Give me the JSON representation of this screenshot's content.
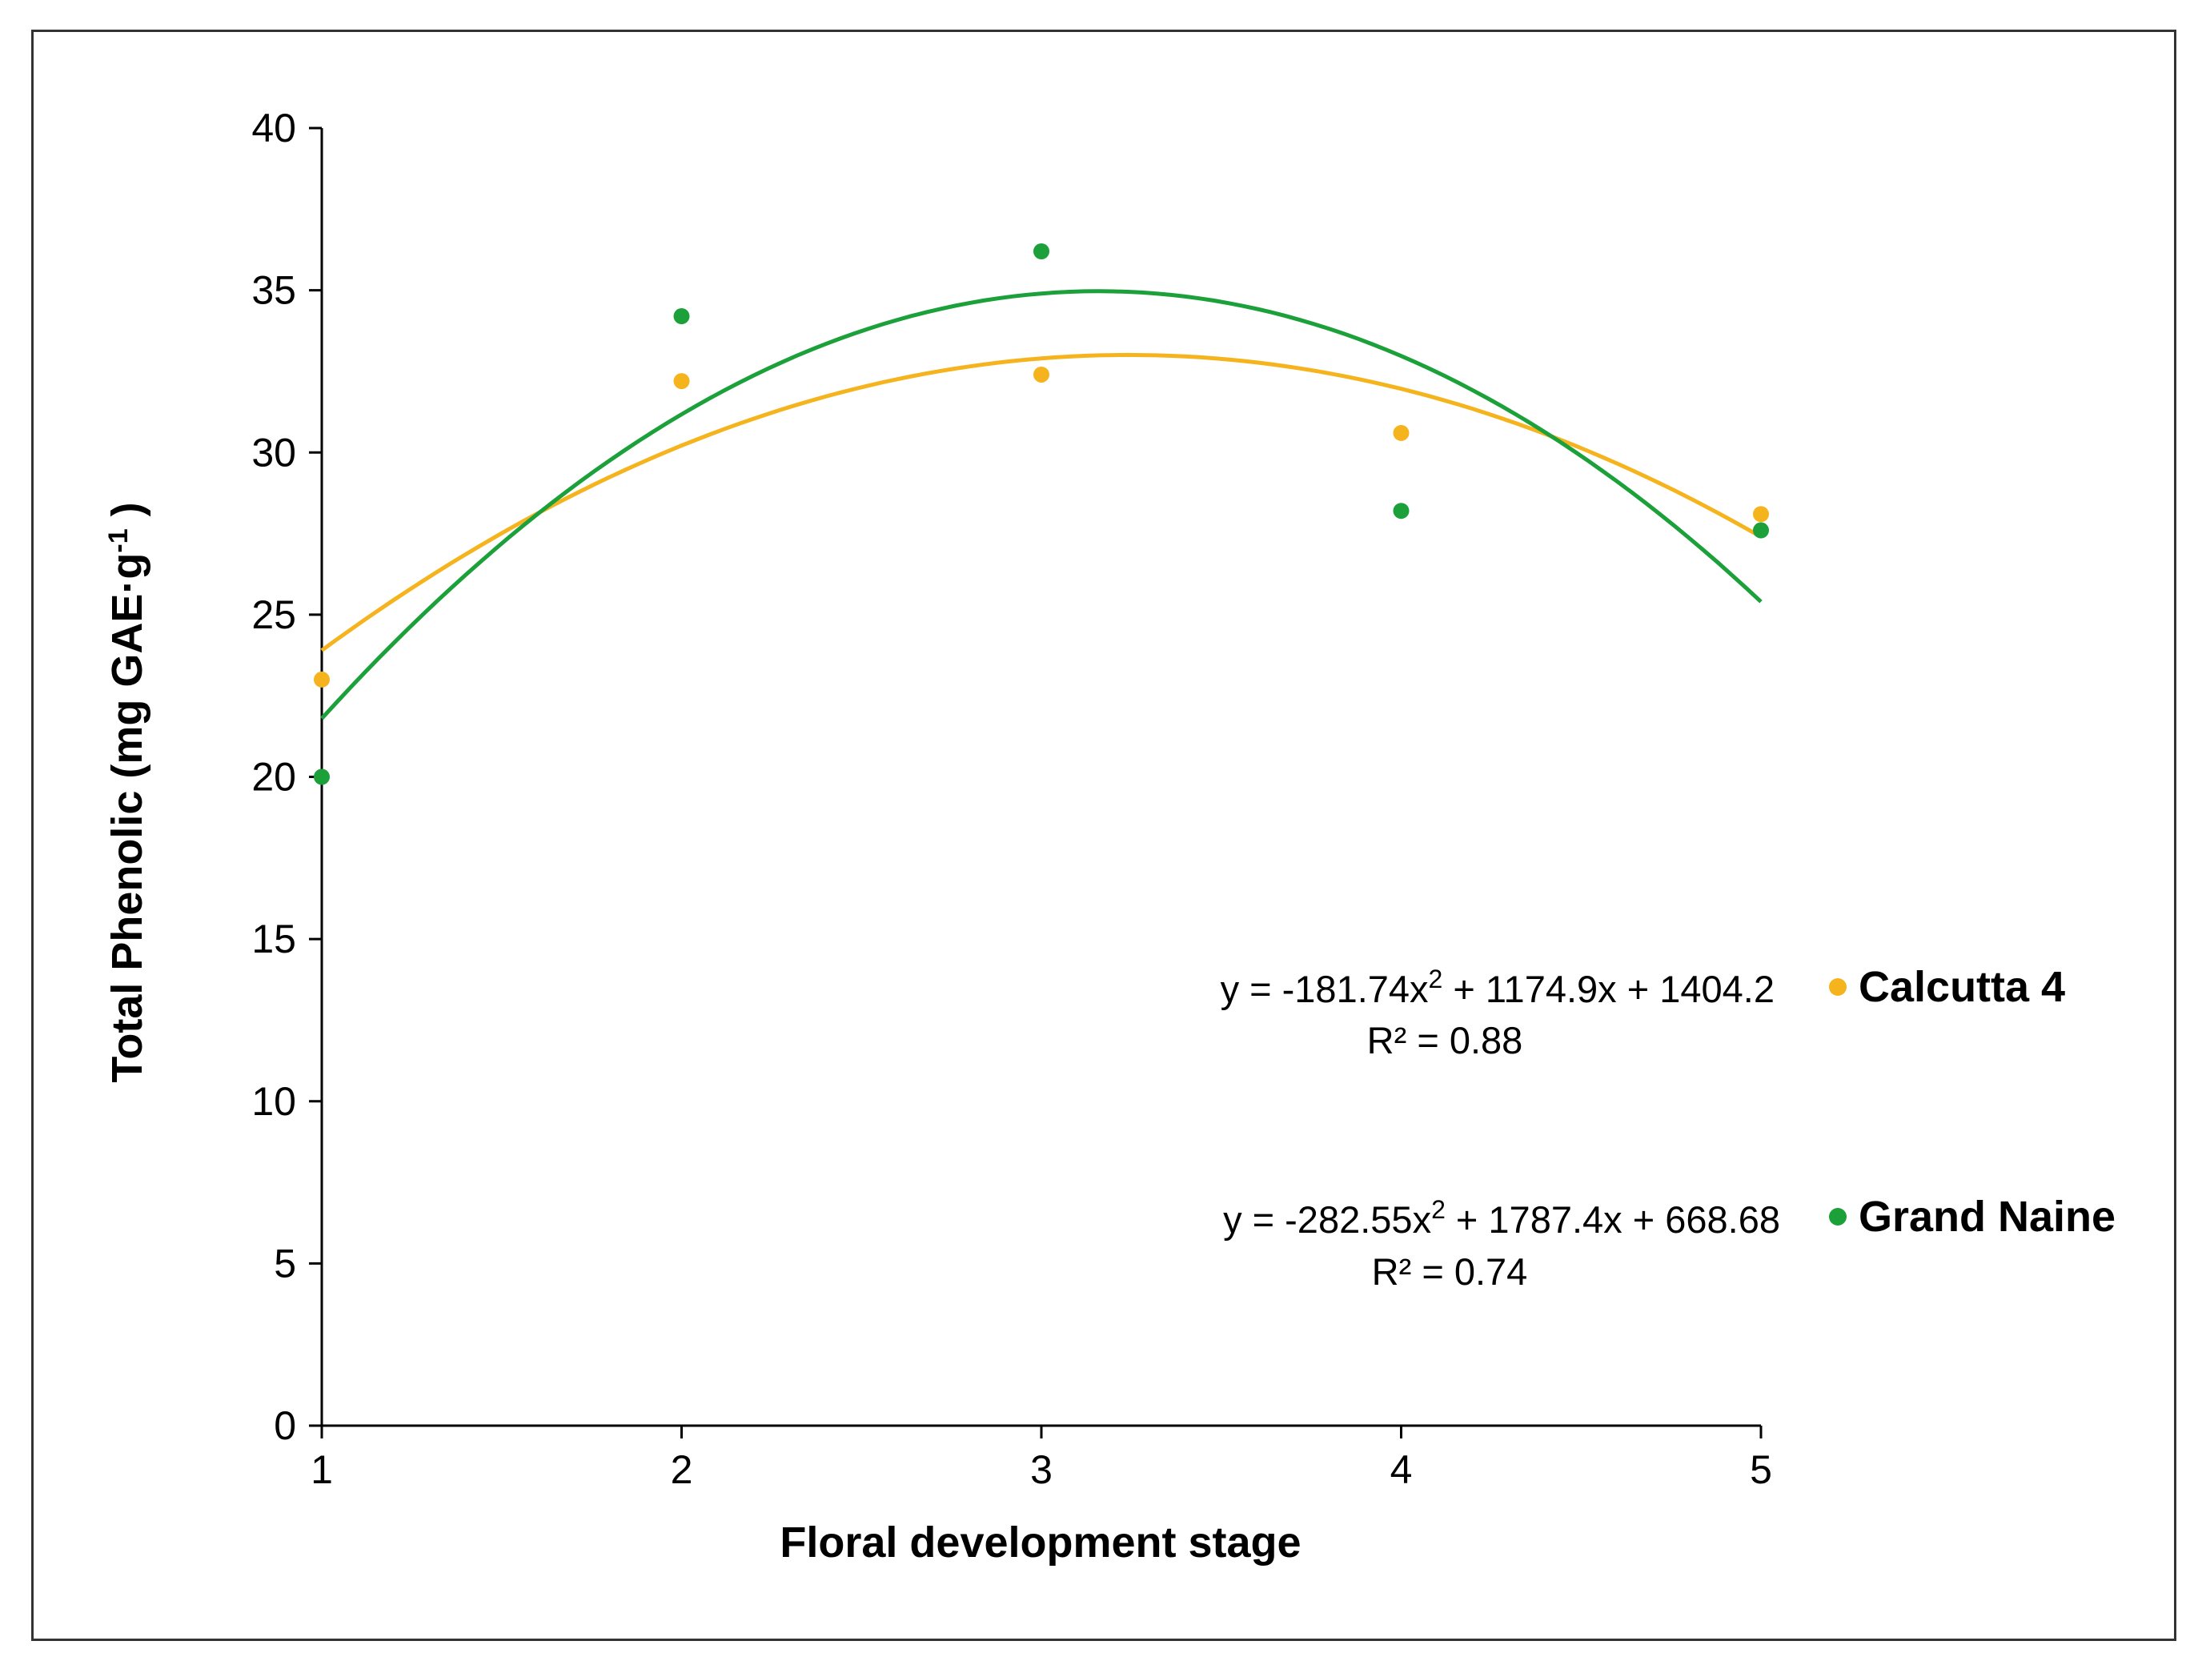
{
  "chart_data": {
    "type": "scatter",
    "title": "",
    "xlabel": "Floral development stage",
    "ylabel": "Total Phenolic (mg GAE·g-1 )",
    "ylabel_parts": {
      "main": "Total Phenolic (mg GAE·g",
      "sup": "-1",
      "end": " )"
    },
    "xlim": [
      1,
      5
    ],
    "ylim": [
      0,
      40
    ],
    "xticks": [
      "1",
      "2",
      "3",
      "4",
      "5"
    ],
    "yticks": [
      "0",
      "5",
      "10",
      "15",
      "20",
      "25",
      "30",
      "35",
      "40"
    ],
    "grid": false,
    "legend_position": "right",
    "series": [
      {
        "name": "Calcutta 4",
        "color": "#F5B41E",
        "x": [
          1,
          2,
          3,
          4,
          5
        ],
        "y": [
          23.0,
          32.2,
          32.4,
          30.6,
          28.1
        ],
        "trend_y": [
          23.9,
          30.3,
          32.9,
          31.8,
          27.4
        ],
        "equation": "y = -181.74x2 + 1174.9x + 1404.2",
        "equation_parts": {
          "a": "y = -181.74x",
          "sup": "2",
          "b": " + 1174.9x + 1404.2"
        },
        "r2": "R² = 0.88"
      },
      {
        "name": "Grand Naine",
        "color": "#1BA03A",
        "x": [
          1,
          2,
          3,
          4,
          5
        ],
        "y": [
          20.0,
          34.2,
          36.2,
          28.2,
          27.6
        ],
        "trend_y": [
          21.8,
          31.2,
          34.9,
          32.8,
          25.4
        ],
        "equation": "y = -282.55x2 + 1787.4x + 668.68",
        "equation_parts": {
          "a": "y = -282.55x",
          "sup": "2",
          "b": " + 1787.4x + 668.68"
        },
        "r2": "R² = 0.74"
      }
    ]
  }
}
